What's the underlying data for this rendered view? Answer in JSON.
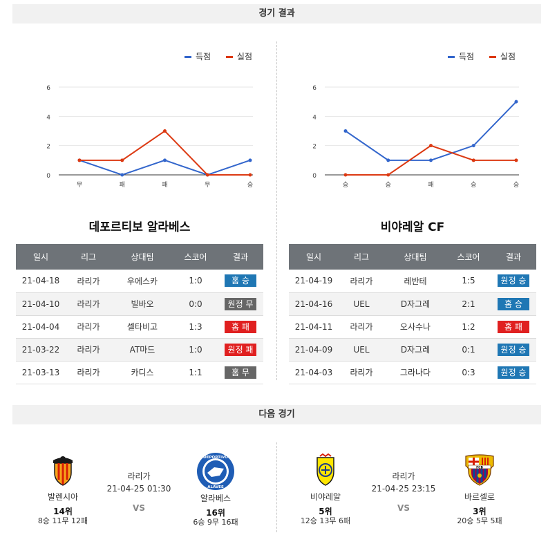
{
  "results_header": "경기 결과",
  "next_header": "다음 경기",
  "legend": {
    "scored": "득점",
    "conceded": "실점"
  },
  "colors": {
    "scored": "#3366cc",
    "conceded": "#dc3912",
    "home": "#1f77b4",
    "away": "#1f77b4",
    "draw": "#666666",
    "loss": "#e02020"
  },
  "chart_data": [
    {
      "type": "line",
      "categories": [
        "무",
        "패",
        "패",
        "무",
        "승"
      ],
      "series": [
        {
          "name": "득점",
          "values": [
            1,
            0,
            1,
            0,
            1
          ]
        },
        {
          "name": "실점",
          "values": [
            1,
            1,
            3,
            0,
            0
          ]
        }
      ],
      "y_ticks": [
        "0",
        "2",
        "4",
        "6"
      ],
      "ylim": [
        0,
        6
      ],
      "grid": true,
      "legend_position": "top-right"
    },
    {
      "type": "line",
      "categories": [
        "승",
        "승",
        "패",
        "승",
        "승"
      ],
      "series": [
        {
          "name": "득점",
          "values": [
            3,
            1,
            1,
            2,
            5
          ]
        },
        {
          "name": "실점",
          "values": [
            0,
            0,
            2,
            1,
            1
          ]
        }
      ],
      "y_ticks": [
        "0",
        "2",
        "4",
        "6"
      ],
      "ylim": [
        0,
        6
      ],
      "grid": true,
      "legend_position": "top-right"
    }
  ],
  "teams": [
    {
      "title": "데포르티보 알라베스",
      "headers": [
        "일시",
        "리그",
        "상대팀",
        "스코어",
        "결과"
      ],
      "rows": [
        {
          "date": "21-04-18",
          "league": "라리가",
          "opponent": "우에스카",
          "score": "1:0",
          "result": "홈 승",
          "kind": "win"
        },
        {
          "date": "21-04-10",
          "league": "라리가",
          "opponent": "빌바오",
          "score": "0:0",
          "result": "원정 무",
          "kind": "draw"
        },
        {
          "date": "21-04-04",
          "league": "라리가",
          "opponent": "셀타비고",
          "score": "1:3",
          "result": "홈 패",
          "kind": "loss"
        },
        {
          "date": "21-03-22",
          "league": "라리가",
          "opponent": "AT마드",
          "score": "1:0",
          "result": "원정 패",
          "kind": "loss"
        },
        {
          "date": "21-03-13",
          "league": "라리가",
          "opponent": "카디스",
          "score": "1:1",
          "result": "홈 무",
          "kind": "draw"
        }
      ]
    },
    {
      "title": "비야레알 CF",
      "headers": [
        "일시",
        "리그",
        "상대팀",
        "스코어",
        "결과"
      ],
      "rows": [
        {
          "date": "21-04-19",
          "league": "라리가",
          "opponent": "레반테",
          "score": "1:5",
          "result": "원정 승",
          "kind": "win"
        },
        {
          "date": "21-04-16",
          "league": "UEL",
          "opponent": "D자그레",
          "score": "2:1",
          "result": "홈 승",
          "kind": "win"
        },
        {
          "date": "21-04-11",
          "league": "라리가",
          "opponent": "오사수나",
          "score": "1:2",
          "result": "홈 패",
          "kind": "loss"
        },
        {
          "date": "21-04-09",
          "league": "UEL",
          "opponent": "D자그레",
          "score": "0:1",
          "result": "원정 승",
          "kind": "win"
        },
        {
          "date": "21-04-03",
          "league": "라리가",
          "opponent": "그라나다",
          "score": "0:3",
          "result": "원정 승",
          "kind": "win"
        }
      ]
    }
  ],
  "next_matches": [
    {
      "league": "라리가",
      "datetime": "21-04-25 01:30",
      "vs": "VS",
      "home": {
        "name": "발렌시아",
        "rank": "14위",
        "record": "8승 11무 12패",
        "crest": "valencia-crest-icon"
      },
      "away": {
        "name": "알라베스",
        "rank": "16위",
        "record": "6승 9무 16패",
        "crest": "alaves-crest-icon",
        "crest_text": "DEPORTIVO ALAVES"
      }
    },
    {
      "league": "라리가",
      "datetime": "21-04-25 23:15",
      "vs": "VS",
      "home": {
        "name": "비야레알",
        "rank": "5위",
        "record": "12승 13무 6패",
        "crest": "villarreal-crest-icon"
      },
      "away": {
        "name": "바르셀로",
        "rank": "3위",
        "record": "20승 5무 5패",
        "crest": "barcelona-crest-icon",
        "crest_text": "FCB"
      }
    }
  ]
}
